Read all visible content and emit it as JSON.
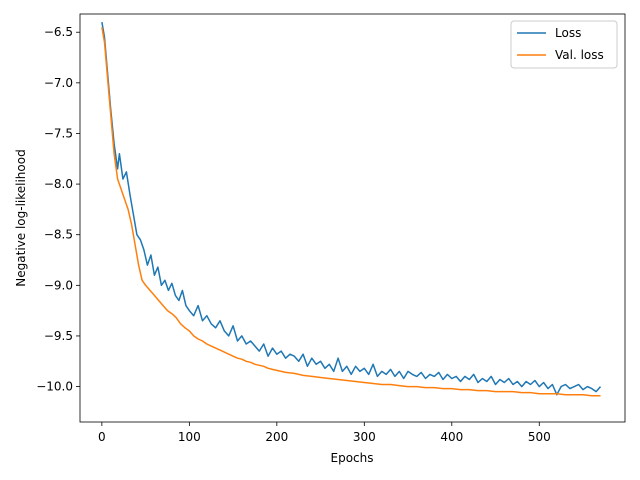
{
  "chart_data": {
    "type": "line",
    "title": "",
    "xlabel": "Epochs",
    "ylabel": "Negative log-likelihood",
    "xlim": [
      -25,
      598
    ],
    "ylim": [
      -10.35,
      -6.32
    ],
    "xticks": [
      0,
      100,
      200,
      300,
      400,
      500
    ],
    "xtick_labels": [
      "0",
      "100",
      "200",
      "300",
      "400",
      "500"
    ],
    "yticks": [
      -10.0,
      -9.5,
      -9.0,
      -8.5,
      -8.0,
      -7.5,
      -7.0,
      -6.5
    ],
    "ytick_labels": [
      "−10.0",
      "−9.5",
      "−9.0",
      "−8.5",
      "−8.0",
      "−7.5",
      "−7.0",
      "−6.5"
    ],
    "grid": false,
    "legend_position": "top-right",
    "series": [
      {
        "name": "Loss",
        "color": "#1f77b4",
        "points": [
          [
            0,
            -6.4
          ],
          [
            3,
            -6.55
          ],
          [
            6,
            -6.85
          ],
          [
            10,
            -7.25
          ],
          [
            14,
            -7.6
          ],
          [
            18,
            -7.85
          ],
          [
            20,
            -7.7
          ],
          [
            24,
            -7.95
          ],
          [
            28,
            -7.88
          ],
          [
            32,
            -8.1
          ],
          [
            36,
            -8.3
          ],
          [
            40,
            -8.5
          ],
          [
            44,
            -8.55
          ],
          [
            48,
            -8.65
          ],
          [
            52,
            -8.8
          ],
          [
            56,
            -8.7
          ],
          [
            60,
            -8.9
          ],
          [
            64,
            -8.82
          ],
          [
            68,
            -9.0
          ],
          [
            72,
            -8.95
          ],
          [
            76,
            -9.05
          ],
          [
            80,
            -8.98
          ],
          [
            84,
            -9.1
          ],
          [
            88,
            -9.15
          ],
          [
            92,
            -9.05
          ],
          [
            96,
            -9.2
          ],
          [
            100,
            -9.25
          ],
          [
            105,
            -9.3
          ],
          [
            110,
            -9.2
          ],
          [
            115,
            -9.35
          ],
          [
            120,
            -9.3
          ],
          [
            125,
            -9.38
          ],
          [
            130,
            -9.42
          ],
          [
            135,
            -9.35
          ],
          [
            140,
            -9.45
          ],
          [
            145,
            -9.5
          ],
          [
            150,
            -9.4
          ],
          [
            155,
            -9.55
          ],
          [
            160,
            -9.5
          ],
          [
            165,
            -9.58
          ],
          [
            170,
            -9.55
          ],
          [
            175,
            -9.6
          ],
          [
            180,
            -9.65
          ],
          [
            185,
            -9.58
          ],
          [
            190,
            -9.7
          ],
          [
            195,
            -9.62
          ],
          [
            200,
            -9.68
          ],
          [
            205,
            -9.65
          ],
          [
            210,
            -9.72
          ],
          [
            215,
            -9.68
          ],
          [
            220,
            -9.7
          ],
          [
            225,
            -9.75
          ],
          [
            230,
            -9.68
          ],
          [
            235,
            -9.8
          ],
          [
            240,
            -9.72
          ],
          [
            245,
            -9.78
          ],
          [
            250,
            -9.75
          ],
          [
            255,
            -9.82
          ],
          [
            260,
            -9.78
          ],
          [
            265,
            -9.85
          ],
          [
            270,
            -9.72
          ],
          [
            275,
            -9.85
          ],
          [
            280,
            -9.8
          ],
          [
            285,
            -9.88
          ],
          [
            290,
            -9.8
          ],
          [
            295,
            -9.85
          ],
          [
            300,
            -9.82
          ],
          [
            305,
            -9.88
          ],
          [
            310,
            -9.78
          ],
          [
            315,
            -9.9
          ],
          [
            320,
            -9.85
          ],
          [
            325,
            -9.88
          ],
          [
            330,
            -9.83
          ],
          [
            335,
            -9.9
          ],
          [
            340,
            -9.85
          ],
          [
            345,
            -9.92
          ],
          [
            350,
            -9.85
          ],
          [
            355,
            -9.88
          ],
          [
            360,
            -9.9
          ],
          [
            365,
            -9.86
          ],
          [
            370,
            -9.92
          ],
          [
            375,
            -9.88
          ],
          [
            380,
            -9.9
          ],
          [
            385,
            -9.86
          ],
          [
            390,
            -9.93
          ],
          [
            395,
            -9.88
          ],
          [
            400,
            -9.92
          ],
          [
            405,
            -9.9
          ],
          [
            410,
            -9.95
          ],
          [
            415,
            -9.9
          ],
          [
            420,
            -9.93
          ],
          [
            425,
            -9.88
          ],
          [
            430,
            -9.96
          ],
          [
            435,
            -9.92
          ],
          [
            440,
            -9.95
          ],
          [
            445,
            -9.9
          ],
          [
            450,
            -9.98
          ],
          [
            455,
            -9.93
          ],
          [
            460,
            -9.96
          ],
          [
            465,
            -9.92
          ],
          [
            470,
            -9.98
          ],
          [
            475,
            -9.95
          ],
          [
            480,
            -10.0
          ],
          [
            485,
            -9.95
          ],
          [
            490,
            -9.98
          ],
          [
            495,
            -9.94
          ],
          [
            500,
            -10.0
          ],
          [
            505,
            -9.96
          ],
          [
            510,
            -10.02
          ],
          [
            515,
            -9.98
          ],
          [
            520,
            -10.08
          ],
          [
            525,
            -10.0
          ],
          [
            530,
            -9.98
          ],
          [
            535,
            -10.02
          ],
          [
            540,
            -10.0
          ],
          [
            545,
            -9.98
          ],
          [
            550,
            -10.03
          ],
          [
            555,
            -10.0
          ],
          [
            560,
            -10.02
          ],
          [
            565,
            -10.05
          ],
          [
            570,
            -10.0
          ]
        ]
      },
      {
        "name": "Val. loss",
        "color": "#ff7f0e",
        "points": [
          [
            0,
            -6.45
          ],
          [
            3,
            -6.6
          ],
          [
            6,
            -6.9
          ],
          [
            10,
            -7.3
          ],
          [
            14,
            -7.7
          ],
          [
            18,
            -7.95
          ],
          [
            22,
            -8.05
          ],
          [
            26,
            -8.15
          ],
          [
            30,
            -8.25
          ],
          [
            34,
            -8.4
          ],
          [
            38,
            -8.6
          ],
          [
            42,
            -8.8
          ],
          [
            46,
            -8.95
          ],
          [
            50,
            -9.0
          ],
          [
            55,
            -9.05
          ],
          [
            60,
            -9.1
          ],
          [
            65,
            -9.15
          ],
          [
            70,
            -9.2
          ],
          [
            75,
            -9.25
          ],
          [
            80,
            -9.28
          ],
          [
            85,
            -9.32
          ],
          [
            90,
            -9.38
          ],
          [
            95,
            -9.42
          ],
          [
            100,
            -9.45
          ],
          [
            105,
            -9.5
          ],
          [
            110,
            -9.53
          ],
          [
            115,
            -9.55
          ],
          [
            120,
            -9.58
          ],
          [
            125,
            -9.6
          ],
          [
            130,
            -9.62
          ],
          [
            135,
            -9.64
          ],
          [
            140,
            -9.66
          ],
          [
            145,
            -9.68
          ],
          [
            150,
            -9.7
          ],
          [
            155,
            -9.72
          ],
          [
            160,
            -9.73
          ],
          [
            165,
            -9.75
          ],
          [
            170,
            -9.76
          ],
          [
            175,
            -9.78
          ],
          [
            180,
            -9.79
          ],
          [
            185,
            -9.8
          ],
          [
            190,
            -9.82
          ],
          [
            195,
            -9.83
          ],
          [
            200,
            -9.84
          ],
          [
            210,
            -9.86
          ],
          [
            220,
            -9.87
          ],
          [
            230,
            -9.89
          ],
          [
            240,
            -9.9
          ],
          [
            250,
            -9.91
          ],
          [
            260,
            -9.92
          ],
          [
            270,
            -9.93
          ],
          [
            280,
            -9.94
          ],
          [
            290,
            -9.95
          ],
          [
            300,
            -9.96
          ],
          [
            310,
            -9.97
          ],
          [
            320,
            -9.98
          ],
          [
            330,
            -9.98
          ],
          [
            340,
            -9.99
          ],
          [
            350,
            -10.0
          ],
          [
            360,
            -10.0
          ],
          [
            370,
            -10.01
          ],
          [
            380,
            -10.01
          ],
          [
            390,
            -10.02
          ],
          [
            400,
            -10.02
          ],
          [
            410,
            -10.03
          ],
          [
            420,
            -10.03
          ],
          [
            430,
            -10.04
          ],
          [
            440,
            -10.04
          ],
          [
            450,
            -10.05
          ],
          [
            460,
            -10.05
          ],
          [
            470,
            -10.05
          ],
          [
            480,
            -10.06
          ],
          [
            490,
            -10.06
          ],
          [
            500,
            -10.07
          ],
          [
            510,
            -10.07
          ],
          [
            520,
            -10.07
          ],
          [
            530,
            -10.08
          ],
          [
            540,
            -10.08
          ],
          [
            550,
            -10.08
          ],
          [
            560,
            -10.09
          ],
          [
            570,
            -10.09
          ]
        ]
      }
    ]
  }
}
